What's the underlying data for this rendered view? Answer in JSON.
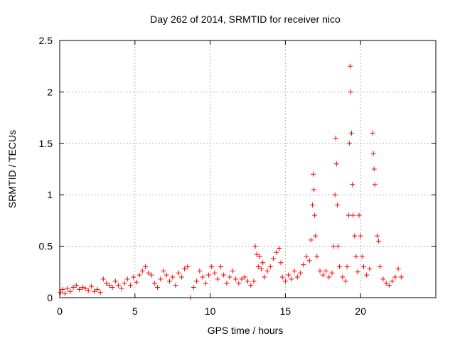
{
  "chart_data": {
    "type": "scatter",
    "title": "Day 262 of 2014, SRMTID for receiver nico",
    "xlabel": "GPS time / hours",
    "ylabel": "SRMTID / TECUs",
    "xlim": [
      0,
      25
    ],
    "ylim": [
      0,
      2.5
    ],
    "xticks": [
      0,
      5,
      10,
      15,
      20
    ],
    "xtick_labels": [
      "0",
      "5",
      "10",
      "15",
      "20"
    ],
    "yticks": [
      0,
      0.5,
      1,
      1.5,
      2,
      2.5
    ],
    "ytick_labels": [
      "0",
      "0.5",
      "1",
      "1.5",
      "2",
      "2.5"
    ],
    "grid": true,
    "marker": "+",
    "color": "#ff0000",
    "series": [
      {
        "name": "SRMTID",
        "points": [
          [
            0.05,
            0.05
          ],
          [
            0.2,
            0.08
          ],
          [
            0.35,
            0.04
          ],
          [
            0.5,
            0.09
          ],
          [
            0.7,
            0.06
          ],
          [
            0.9,
            0.1
          ],
          [
            1.1,
            0.12
          ],
          [
            1.3,
            0.08
          ],
          [
            1.5,
            0.1
          ],
          [
            1.7,
            0.09
          ],
          [
            1.9,
            0.07
          ],
          [
            2.1,
            0.11
          ],
          [
            2.3,
            0.06
          ],
          [
            2.5,
            0.08
          ],
          [
            2.7,
            0.05
          ],
          [
            2.9,
            0.18
          ],
          [
            3.1,
            0.14
          ],
          [
            3.3,
            0.12
          ],
          [
            3.5,
            0.1
          ],
          [
            3.7,
            0.16
          ],
          [
            3.9,
            0.12
          ],
          [
            4.1,
            0.09
          ],
          [
            4.3,
            0.14
          ],
          [
            4.5,
            0.18
          ],
          [
            4.7,
            0.12
          ],
          [
            4.9,
            0.2
          ],
          [
            5.1,
            0.15
          ],
          [
            5.3,
            0.22
          ],
          [
            5.5,
            0.26
          ],
          [
            5.7,
            0.3
          ],
          [
            5.9,
            0.24
          ],
          [
            6.1,
            0.22
          ],
          [
            6.3,
            0.14
          ],
          [
            6.5,
            0.1
          ],
          [
            6.7,
            0.18
          ],
          [
            6.9,
            0.26
          ],
          [
            7.1,
            0.22
          ],
          [
            7.3,
            0.16
          ],
          [
            7.5,
            0.2
          ],
          [
            7.7,
            0.12
          ],
          [
            7.9,
            0.24
          ],
          [
            8.1,
            0.2
          ],
          [
            8.3,
            0.28
          ],
          [
            8.5,
            0.3
          ],
          [
            8.7,
            0.0
          ],
          [
            8.9,
            0.1
          ],
          [
            9.1,
            0.16
          ],
          [
            9.3,
            0.26
          ],
          [
            9.5,
            0.2
          ],
          [
            9.7,
            0.14
          ],
          [
            9.9,
            0.22
          ],
          [
            10.1,
            0.3
          ],
          [
            10.3,
            0.24
          ],
          [
            10.5,
            0.18
          ],
          [
            10.7,
            0.3
          ],
          [
            10.9,
            0.22
          ],
          [
            11.1,
            0.14
          ],
          [
            11.3,
            0.2
          ],
          [
            11.5,
            0.26
          ],
          [
            11.7,
            0.18
          ],
          [
            11.9,
            0.14
          ],
          [
            12.1,
            0.18
          ],
          [
            12.3,
            0.2
          ],
          [
            12.5,
            0.16
          ],
          [
            12.7,
            0.12
          ],
          [
            12.9,
            0.16
          ],
          [
            13.0,
            0.5
          ],
          [
            13.1,
            0.42
          ],
          [
            13.2,
            0.3
          ],
          [
            13.3,
            0.4
          ],
          [
            13.4,
            0.28
          ],
          [
            13.5,
            0.34
          ],
          [
            13.6,
            0.2
          ],
          [
            13.8,
            0.26
          ],
          [
            14.0,
            0.3
          ],
          [
            14.2,
            0.38
          ],
          [
            14.4,
            0.44
          ],
          [
            14.6,
            0.48
          ],
          [
            14.7,
            0.34
          ],
          [
            14.8,
            0.2
          ],
          [
            15.0,
            0.16
          ],
          [
            15.2,
            0.22
          ],
          [
            15.4,
            0.18
          ],
          [
            15.6,
            0.26
          ],
          [
            15.8,
            0.2
          ],
          [
            16.0,
            0.24
          ],
          [
            16.2,
            0.32
          ],
          [
            16.4,
            0.4
          ],
          [
            16.6,
            0.36
          ],
          [
            16.7,
            0.56
          ],
          [
            16.8,
            0.9
          ],
          [
            16.85,
            1.2
          ],
          [
            16.9,
            1.05
          ],
          [
            16.95,
            0.8
          ],
          [
            17.0,
            0.6
          ],
          [
            17.1,
            0.4
          ],
          [
            17.3,
            0.26
          ],
          [
            17.5,
            0.22
          ],
          [
            17.7,
            0.26
          ],
          [
            17.9,
            0.2
          ],
          [
            18.1,
            0.24
          ],
          [
            18.2,
            0.5
          ],
          [
            18.3,
            1.0
          ],
          [
            18.35,
            1.55
          ],
          [
            18.4,
            1.3
          ],
          [
            18.45,
            0.9
          ],
          [
            18.5,
            0.5
          ],
          [
            18.6,
            0.3
          ],
          [
            18.8,
            0.2
          ],
          [
            19.0,
            0.16
          ],
          [
            19.1,
            0.3
          ],
          [
            19.2,
            0.8
          ],
          [
            19.25,
            1.5
          ],
          [
            19.3,
            2.25
          ],
          [
            19.35,
            2.0
          ],
          [
            19.4,
            1.6
          ],
          [
            19.45,
            1.1
          ],
          [
            19.5,
            0.8
          ],
          [
            19.6,
            0.6
          ],
          [
            19.7,
            0.4
          ],
          [
            19.8,
            0.25
          ],
          [
            19.9,
            0.8
          ],
          [
            20.0,
            0.6
          ],
          [
            20.1,
            0.4
          ],
          [
            20.2,
            0.3
          ],
          [
            20.4,
            0.22
          ],
          [
            20.6,
            0.28
          ],
          [
            20.8,
            1.6
          ],
          [
            20.85,
            1.4
          ],
          [
            20.9,
            1.25
          ],
          [
            20.95,
            1.1
          ],
          [
            21.1,
            0.6
          ],
          [
            21.2,
            0.55
          ],
          [
            21.3,
            0.3
          ],
          [
            21.5,
            0.18
          ],
          [
            21.7,
            0.14
          ],
          [
            21.9,
            0.12
          ],
          [
            22.1,
            0.16
          ],
          [
            22.3,
            0.2
          ],
          [
            22.5,
            0.28
          ],
          [
            22.7,
            0.2
          ]
        ]
      }
    ]
  }
}
